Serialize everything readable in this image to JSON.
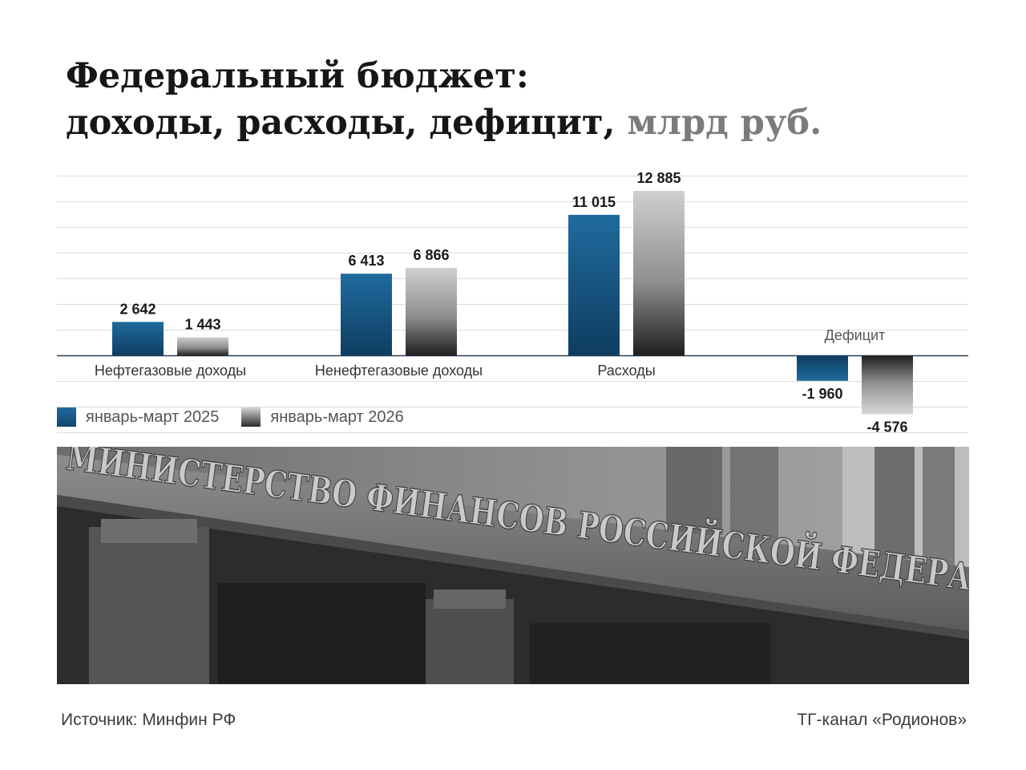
{
  "title": {
    "line1": "Федеральный бюджет:",
    "line2": "доходы, расходы, дефицит, ",
    "unit": "млрд руб."
  },
  "chart_data": {
    "type": "bar",
    "categories": [
      "Нефтегазовые доходы",
      "Ненефтегазовые доходы",
      "Расходы",
      "Дефицит"
    ],
    "series": [
      {
        "name": "январь-март 2025",
        "values": [
          2642,
          6413,
          11015,
          -1960
        ],
        "labels": [
          "2 642",
          "6 413",
          "11 015",
          "-1 960"
        ]
      },
      {
        "name": "январь-март 2026",
        "values": [
          1443,
          6866,
          12885,
          -4576
        ],
        "labels": [
          "1 443",
          "6 866",
          "12 885",
          "-4 576"
        ]
      }
    ],
    "ylim": [
      -6000,
      14000
    ],
    "grid": true,
    "legend": "bottom-left",
    "colors": {
      "s2025": "#1b5e8f",
      "s2026": "#9a9a9a"
    }
  },
  "photo": {
    "signage": "МИНИСТЕРСТВО ФИНАНСОВ РОССИЙСКОЙ ФЕДЕРАЦИИ"
  },
  "footer": {
    "source": "Источник: Минфин РФ",
    "channel": "ТГ-канал «Родионов»"
  }
}
